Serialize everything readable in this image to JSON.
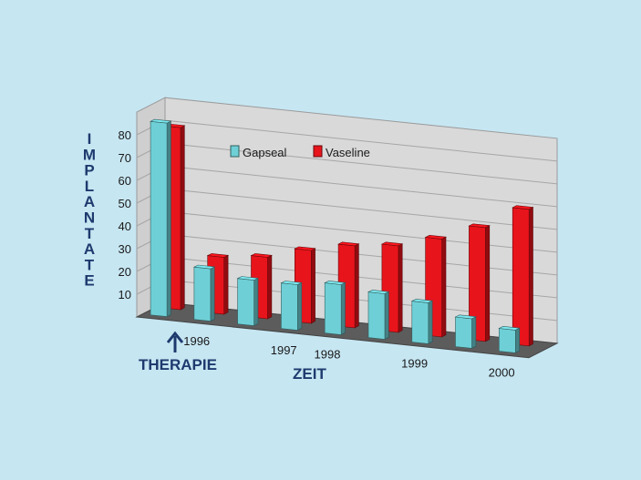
{
  "chart_data": {
    "type": "bar",
    "categories": [
      "THERAPIE",
      "1996",
      "",
      "1997",
      "1998",
      "",
      "1999",
      "",
      "2000"
    ],
    "series": [
      {
        "name": "Gapseal",
        "values": [
          85,
          23,
          20,
          20,
          22,
          20,
          18,
          13,
          10
        ],
        "color": "#6ed0d6"
      },
      {
        "name": "Vaseline",
        "values": [
          80,
          25,
          27,
          32,
          36,
          38,
          43,
          50,
          60
        ],
        "color": "#e8141b"
      }
    ],
    "xlabel": "ZEIT",
    "ylabel": "IMPLANTATE",
    "yticks": [
      "10",
      "20",
      "30",
      "40",
      "50",
      "60",
      "70",
      "80"
    ],
    "ylim": [
      0,
      90
    ],
    "therapy_label": "THERAPIE",
    "arrow_icon": "arrow-up-icon",
    "legend_placement": "top-center",
    "grid": true
  }
}
